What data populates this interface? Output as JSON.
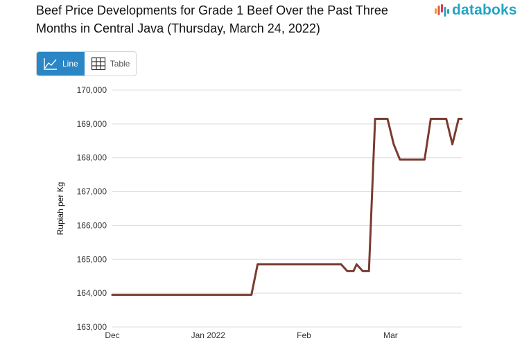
{
  "title": "Beef Price Developments for Grade 1 Beef Over the Past Three Months in Central Java (Thursday, March 24, 2022)",
  "brand": {
    "name": "databoks",
    "color": "#25a3c4"
  },
  "view_toggle": {
    "line_label": "Line",
    "table_label": "Table",
    "active": "Line",
    "line_icon": "line-chart-icon",
    "table_icon": "table-grid-icon",
    "active_color": "#2b86c5"
  },
  "chart_data": {
    "type": "line",
    "title": "",
    "ylabel": "Rupiah per Kg",
    "xlabel": "",
    "ylim": [
      163000,
      170000
    ],
    "yticks": [
      163000,
      164000,
      165000,
      166000,
      167000,
      168000,
      169000,
      170000
    ],
    "ytick_labels": [
      "163,000",
      "164,000",
      "165,000",
      "166,000",
      "167,000",
      "168,000",
      "169,000",
      "170,000"
    ],
    "xlim": [
      "2021-12-01",
      "2022-03-24"
    ],
    "xticks": [
      {
        "label": "Dec",
        "date": "2021-12-01"
      },
      {
        "label": "Jan 2022",
        "date": "2022-01-01"
      },
      {
        "label": "Feb",
        "date": "2022-02-01"
      },
      {
        "label": "Mar",
        "date": "2022-03-01"
      }
    ],
    "grid": true,
    "legend": false,
    "series": [
      {
        "color": "#7a3b30",
        "points": [
          {
            "x": "2021-12-01",
            "y": 163950
          },
          {
            "x": "2022-01-15",
            "y": 163950
          },
          {
            "x": "2022-01-17",
            "y": 164850
          },
          {
            "x": "2022-02-13",
            "y": 164850
          },
          {
            "x": "2022-02-15",
            "y": 164650
          },
          {
            "x": "2022-02-17",
            "y": 164650
          },
          {
            "x": "2022-02-18",
            "y": 164850
          },
          {
            "x": "2022-02-20",
            "y": 164650
          },
          {
            "x": "2022-02-22",
            "y": 164650
          },
          {
            "x": "2022-02-24",
            "y": 169150
          },
          {
            "x": "2022-02-28",
            "y": 169150
          },
          {
            "x": "2022-03-02",
            "y": 168400
          },
          {
            "x": "2022-03-04",
            "y": 167950
          },
          {
            "x": "2022-03-12",
            "y": 167950
          },
          {
            "x": "2022-03-14",
            "y": 169150
          },
          {
            "x": "2022-03-19",
            "y": 169150
          },
          {
            "x": "2022-03-21",
            "y": 168400
          },
          {
            "x": "2022-03-23",
            "y": 169150
          },
          {
            "x": "2022-03-24",
            "y": 169150
          }
        ]
      }
    ]
  }
}
